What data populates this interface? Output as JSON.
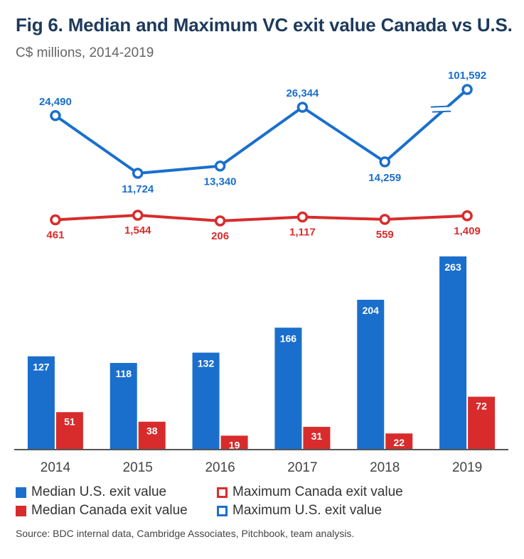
{
  "title": "Fig 6. Median and Maximum VC exit value Canada vs U.S.",
  "subtitle": "C$ millions, 2014-2019",
  "source": "Source: BDC internal data, Cambridge Associates, Pitchbook, team analysis.",
  "colors": {
    "us": "#1a6fcc",
    "canada": "#d82c2c",
    "axis": "#555555"
  },
  "chart_data": {
    "type": "bar",
    "categories": [
      "2014",
      "2015",
      "2016",
      "2017",
      "2018",
      "2019"
    ],
    "series": [
      {
        "name": "Median U.S. exit value",
        "type": "bar",
        "values": [
          127,
          118,
          132,
          166,
          204,
          263
        ],
        "labels": [
          "127",
          "118",
          "132",
          "166",
          "204",
          "263"
        ]
      },
      {
        "name": "Median Canada exit value",
        "type": "bar",
        "values": [
          51,
          38,
          19,
          31,
          22,
          72
        ],
        "labels": [
          "51",
          "38",
          "19",
          "31",
          "22",
          "72"
        ]
      },
      {
        "name": "Maximum U.S. exit value",
        "type": "line",
        "values": [
          24490,
          11724,
          13340,
          26344,
          14259,
          101592
        ],
        "labels": [
          "24,490",
          "11,724",
          "13,340",
          "26,344",
          "14,259",
          "101,592"
        ],
        "axis_break_before_last": true
      },
      {
        "name": "Maximum Canada exit value",
        "type": "line",
        "values": [
          461,
          1544,
          206,
          1117,
          559,
          1409
        ],
        "labels": [
          "461",
          "1,544",
          "206",
          "1,117",
          "559",
          "1,409"
        ]
      }
    ],
    "legend": [
      {
        "label": "Median U.S. exit value",
        "style": "filled",
        "color": "#1a6fcc"
      },
      {
        "label": "Maximum Canada exit value",
        "style": "outline",
        "color": "#d82c2c"
      },
      {
        "label": "Median Canada exit value",
        "style": "filled",
        "color": "#d82c2c"
      },
      {
        "label": "Maximum U.S. exit value",
        "style": "outline",
        "color": "#1a6fcc"
      }
    ],
    "legend_position": "bottom",
    "grid": false
  }
}
